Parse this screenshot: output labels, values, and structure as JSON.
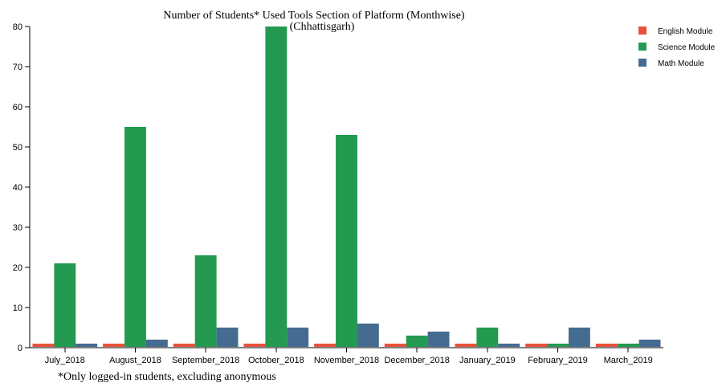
{
  "chart_data": {
    "type": "bar",
    "title": "Number of Students* Used Tools Section of Platform (Monthwise)",
    "subtitle": "(Chhattisgarh)",
    "footnote": "*Only logged-in students, excluding anonymous",
    "xlabel": "",
    "ylabel": "",
    "ylim": [
      0,
      80
    ],
    "yticks": [
      0,
      10,
      20,
      30,
      40,
      50,
      60,
      70,
      80
    ],
    "grid": false,
    "legend_position": "top-right",
    "categories": [
      "July_2018",
      "August_2018",
      "September_2018",
      "October_2018",
      "November_2018",
      "December_2018",
      "January_2019",
      "February_2019",
      "March_2019"
    ],
    "series": [
      {
        "name": "English Module",
        "color": "#e8513a",
        "values": [
          1,
          1,
          1,
          1,
          1,
          1,
          1,
          1,
          1
        ]
      },
      {
        "name": "Science Module",
        "color": "#239a4f",
        "values": [
          21,
          55,
          23,
          80,
          53,
          3,
          5,
          1,
          1
        ]
      },
      {
        "name": "Math Module",
        "color": "#456b91",
        "values": [
          1,
          2,
          5,
          5,
          6,
          4,
          1,
          5,
          2
        ]
      }
    ]
  }
}
